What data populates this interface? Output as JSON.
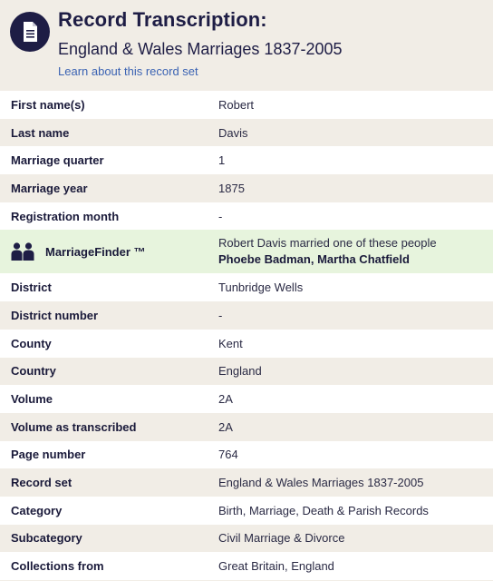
{
  "header": {
    "title": "Record Transcription:",
    "subtitle": "England & Wales Marriages 1837-2005",
    "learn_link": "Learn about this record set"
  },
  "rows_a": [
    {
      "label": "First name(s)",
      "value": "Robert"
    },
    {
      "label": "Last name",
      "value": "Davis"
    },
    {
      "label": "Marriage quarter",
      "value": "1"
    },
    {
      "label": "Marriage year",
      "value": "1875"
    },
    {
      "label": "Registration month",
      "value": "-"
    }
  ],
  "marriage_finder": {
    "label": "MarriageFinder ™",
    "intro": "Robert Davis married one of these people",
    "names": "Phoebe Badman, Martha Chatfield"
  },
  "rows_b": [
    {
      "label": "District",
      "value": "Tunbridge Wells"
    },
    {
      "label": "District number",
      "value": "-"
    },
    {
      "label": "County",
      "value": "Kent"
    },
    {
      "label": "Country",
      "value": "England"
    },
    {
      "label": "Volume",
      "value": "2A"
    },
    {
      "label": "Volume as transcribed",
      "value": "2A"
    },
    {
      "label": "Page number",
      "value": "764"
    },
    {
      "label": "Record set",
      "value": "England & Wales Marriages 1837-2005"
    },
    {
      "label": "Category",
      "value": "Birth, Marriage, Death & Parish Records"
    },
    {
      "label": "Subcategory",
      "value": "Civil Marriage & Divorce"
    },
    {
      "label": "Collections from",
      "value": "Great Britain, England"
    }
  ],
  "icons": {
    "header_badge": "document-icon",
    "finder": "people-icon"
  },
  "colors": {
    "navy": "#1e1d45",
    "link": "#3b63b3",
    "finder_bg": "#e7f4dd",
    "stripe": "#f1ede6"
  }
}
